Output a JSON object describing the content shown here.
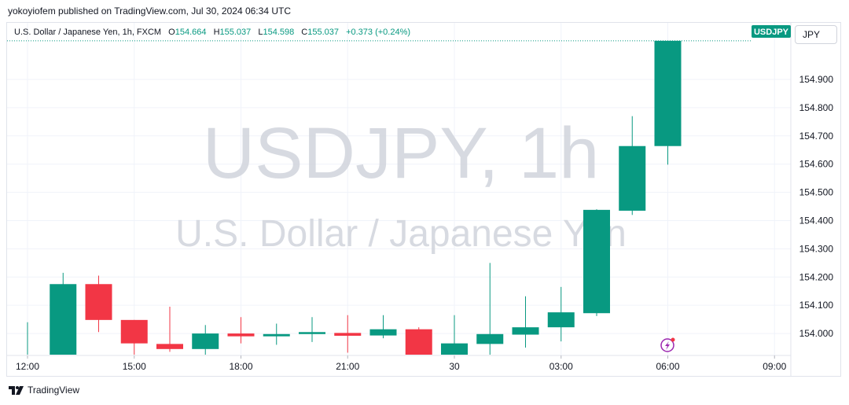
{
  "header": {
    "published_text": "yokoyiofem published on TradingView.com, Jul 30, 2024 06:34 UTC"
  },
  "legend": {
    "symbol": "U.S. Dollar / Japanese Yen, 1h, FXCM",
    "open_label": "O",
    "open": "154.664",
    "high_label": "H",
    "high": "155.037",
    "low_label": "L",
    "low": "154.598",
    "close_label": "C",
    "close": "155.037",
    "change": "+0.373 (+0.24%)"
  },
  "watermark": {
    "line1": "USDJPY, 1h",
    "line2": "U.S. Dollar / Japanese Yen"
  },
  "price_axis": {
    "currency_button": "JPY",
    "symbol_tag": "USDJPY",
    "tag_color": "#089981"
  },
  "footer": {
    "brand": "TradingView"
  },
  "colors": {
    "up": "#089981",
    "down": "#f23645",
    "grid": "#f0f3fa",
    "text": "#131722"
  },
  "chart_data": {
    "type": "candlestick",
    "title": "USDJPY, 1h",
    "symbol": "U.S. Dollar / Japanese Yen",
    "timeframe": "1h",
    "source": "FXCM",
    "x_start": "2024-07-29 12:00",
    "x_tick_labels": [
      "12:00",
      "15:00",
      "18:00",
      "21:00",
      "30",
      "03:00",
      "06:00",
      "09:00"
    ],
    "y_tick_labels": [
      "154.000",
      "154.100",
      "154.200",
      "154.300",
      "154.400",
      "154.500",
      "154.600",
      "154.700",
      "154.800",
      "154.900"
    ],
    "ylim": [
      153.925,
      155.07
    ],
    "grid": true,
    "candles": [
      {
        "time": "2024-07-29 12:00",
        "o": 153.925,
        "h": 154.04,
        "l": 153.925,
        "c": 153.925
      },
      {
        "time": "2024-07-29 13:00",
        "o": 153.925,
        "h": 154.215,
        "l": 153.925,
        "c": 154.175
      },
      {
        "time": "2024-07-29 14:00",
        "o": 154.175,
        "h": 154.205,
        "l": 154.005,
        "c": 154.048
      },
      {
        "time": "2024-07-29 15:00",
        "o": 154.048,
        "h": 154.048,
        "l": 153.925,
        "c": 153.965
      },
      {
        "time": "2024-07-29 16:00",
        "o": 153.963,
        "h": 154.095,
        "l": 153.935,
        "c": 153.945
      },
      {
        "time": "2024-07-29 17:00",
        "o": 153.945,
        "h": 154.03,
        "l": 153.925,
        "c": 154.0
      },
      {
        "time": "2024-07-29 18:00",
        "o": 154.0,
        "h": 154.058,
        "l": 153.965,
        "c": 153.99
      },
      {
        "time": "2024-07-29 19:00",
        "o": 153.99,
        "h": 154.035,
        "l": 153.96,
        "c": 153.998
      },
      {
        "time": "2024-07-29 20:00",
        "o": 153.998,
        "h": 154.058,
        "l": 153.97,
        "c": 154.005
      },
      {
        "time": "2024-07-29 21:00",
        "o": 154.002,
        "h": 154.065,
        "l": 153.932,
        "c": 153.992
      },
      {
        "time": "2024-07-29 22:00",
        "o": 153.993,
        "h": 154.065,
        "l": 153.983,
        "c": 154.015
      },
      {
        "time": "2024-07-29 23:00",
        "o": 154.015,
        "h": 154.022,
        "l": 153.925,
        "c": 153.925
      },
      {
        "time": "2024-07-30 00:00",
        "o": 153.925,
        "h": 154.065,
        "l": 153.925,
        "c": 153.965
      },
      {
        "time": "2024-07-30 01:00",
        "o": 153.963,
        "h": 154.25,
        "l": 153.925,
        "c": 153.998
      },
      {
        "time": "2024-07-30 02:00",
        "o": 153.996,
        "h": 154.132,
        "l": 153.95,
        "c": 154.022
      },
      {
        "time": "2024-07-30 03:00",
        "o": 154.022,
        "h": 154.165,
        "l": 153.972,
        "c": 154.075
      },
      {
        "time": "2024-07-30 04:00",
        "o": 154.072,
        "h": 154.44,
        "l": 154.062,
        "c": 154.438
      },
      {
        "time": "2024-07-30 05:00",
        "o": 154.435,
        "h": 154.77,
        "l": 154.42,
        "c": 154.664
      },
      {
        "time": "2024-07-30 06:00",
        "o": 154.664,
        "h": 155.037,
        "l": 154.598,
        "c": 155.037
      }
    ]
  }
}
